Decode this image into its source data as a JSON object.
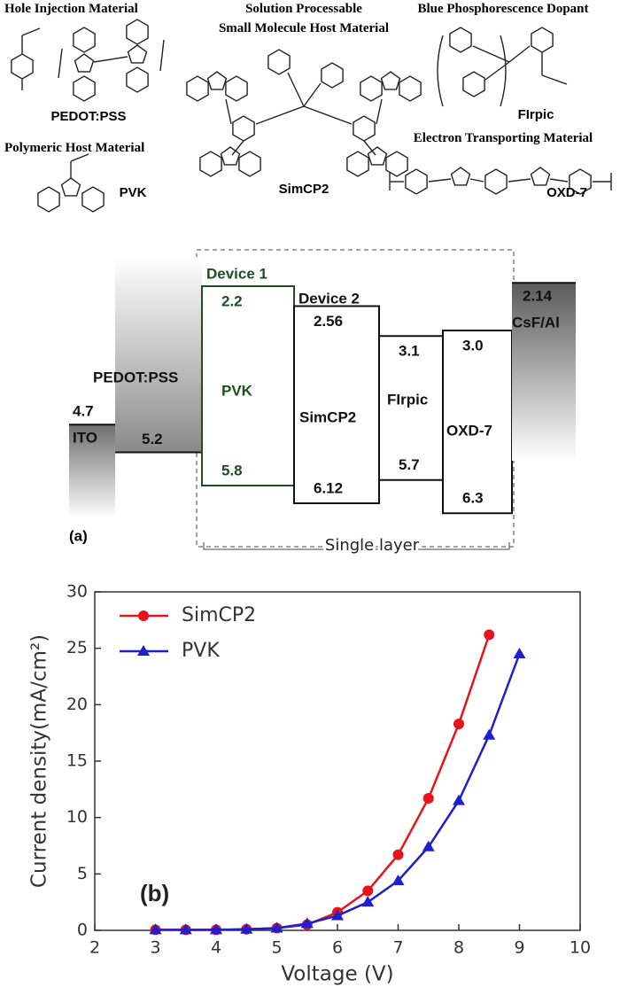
{
  "molecules": [
    {
      "category": [
        "Hole Injection Material"
      ],
      "name": "PEDOT:PSS"
    },
    {
      "category": [
        "Polymeric Host Material"
      ],
      "name": "PVK"
    },
    {
      "category": [
        "Solution Processable",
        "Small Molecule Host Material"
      ],
      "name": "SimCP2"
    },
    {
      "category": [
        "Blue Phosphorescence Dopant"
      ],
      "name": "FIrpic"
    },
    {
      "category": [
        "Electron Transporting Material"
      ],
      "name": "OXD-7"
    }
  ],
  "energy_diagram": {
    "label": "(a)",
    "group_label": "Single layer",
    "layers": [
      {
        "name": "ITO",
        "levels": [
          4.7
        ]
      },
      {
        "name": "PEDOT:PSS",
        "levels": [
          5.2
        ]
      },
      {
        "name": "PVK",
        "tag": "Device 1",
        "levels": [
          2.2,
          5.8
        ]
      },
      {
        "name": "SimCP2",
        "tag": "Device 2",
        "levels": [
          2.56,
          6.12
        ]
      },
      {
        "name": "FIrpic",
        "levels": [
          3.1,
          5.7
        ]
      },
      {
        "name": "OXD-7",
        "levels": [
          {
            "value": 3.0,
            "label": "3.0"
          },
          6.3
        ]
      },
      {
        "name": "CsF/Al",
        "levels": [
          2.14
        ]
      }
    ]
  },
  "chart_data": {
    "type": "line",
    "annotation": "(b)",
    "x_label": "Voltage (V)",
    "y_label": "Current density(mA/cm²)",
    "x": [
      3,
      3.5,
      4,
      4.5,
      5,
      5.5,
      6,
      6.5,
      7,
      7.5,
      8,
      8.5,
      9
    ],
    "series": [
      {
        "name": "SimCP2",
        "color": "#e8141b",
        "marker": "circle",
        "values": [
          0.05,
          0.05,
          0.05,
          0.1,
          0.2,
          0.5,
          1.6,
          3.5,
          6.7,
          11.7,
          18.3,
          26.2,
          null
        ]
      },
      {
        "name": "PVK",
        "color": "#1f1fd0",
        "marker": "triangle",
        "values": [
          0.05,
          0.05,
          0.05,
          0.1,
          0.2,
          0.6,
          1.3,
          2.5,
          4.4,
          7.4,
          11.5,
          17.3,
          24.5
        ]
      }
    ],
    "xlim": [
      2,
      10
    ],
    "ylim": [
      0,
      30
    ],
    "xticks": [
      2,
      3,
      4,
      5,
      6,
      7,
      8,
      9,
      10
    ],
    "yticks": [
      0,
      5,
      10,
      15,
      20,
      25,
      30
    ],
    "legend": "upper left"
  }
}
